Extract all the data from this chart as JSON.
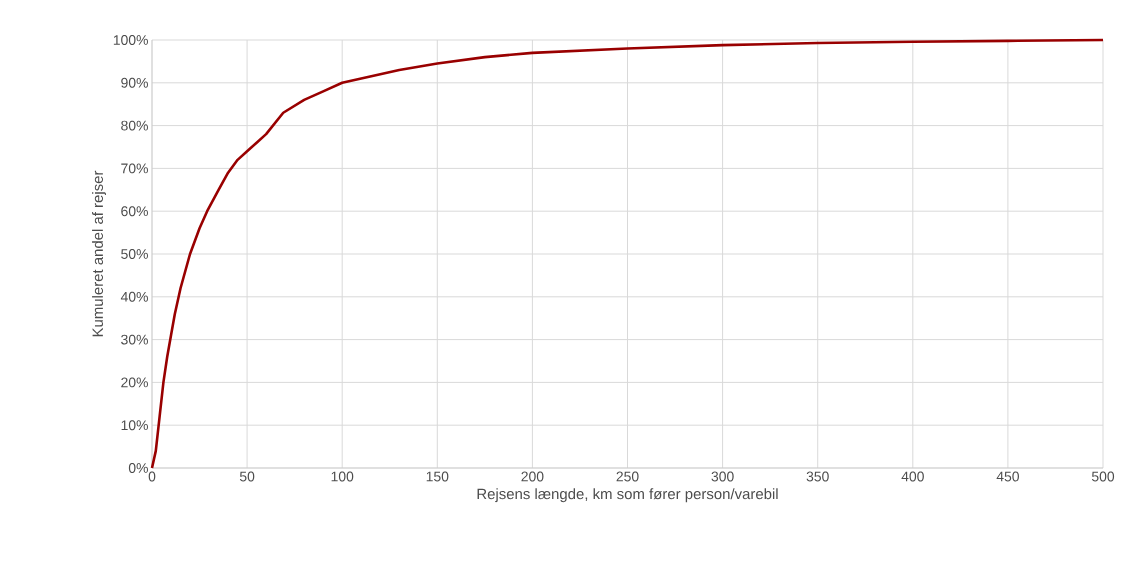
{
  "chart_data": {
    "type": "line",
    "xlabel": "Rejsens længde, km som fører person/varebil",
    "ylabel": "Kumuleret andel af rejser",
    "series": [
      {
        "color": "#990000",
        "x": [
          0,
          2,
          4,
          6,
          8,
          10,
          12,
          15,
          20,
          25,
          29,
          35,
          40,
          45,
          50,
          55,
          60,
          69,
          80,
          90,
          100,
          110,
          120,
          130,
          150,
          175,
          200,
          250,
          300,
          350,
          400,
          450,
          500
        ],
        "values": [
          0,
          4,
          12,
          20,
          26,
          31,
          36,
          42,
          50,
          56,
          60,
          65,
          69,
          72,
          74,
          76,
          78,
          83,
          86,
          88,
          90,
          91,
          92,
          93,
          94.5,
          96,
          97,
          98,
          98.8,
          99.3,
          99.6,
          99.8,
          100
        ]
      }
    ],
    "xlim": [
      0,
      500
    ],
    "xticks": [
      0,
      50,
      100,
      150,
      200,
      250,
      300,
      350,
      400,
      450,
      500
    ],
    "ylim": [
      0,
      100
    ],
    "yticks": [
      {
        "value": 0,
        "label": "0%"
      },
      {
        "value": 10,
        "label": "10%"
      },
      {
        "value": 20,
        "label": "20%"
      },
      {
        "value": 30,
        "label": "30%"
      },
      {
        "value": 40,
        "label": "40%"
      },
      {
        "value": 50,
        "label": "50%"
      },
      {
        "value": 60,
        "label": "60%"
      },
      {
        "value": 70,
        "label": "70%"
      },
      {
        "value": 80,
        "label": "80%"
      },
      {
        "value": 90,
        "label": "90%"
      },
      {
        "value": 100,
        "label": "100%"
      }
    ],
    "grid": true,
    "marker": "none",
    "line_style": "solid"
  }
}
